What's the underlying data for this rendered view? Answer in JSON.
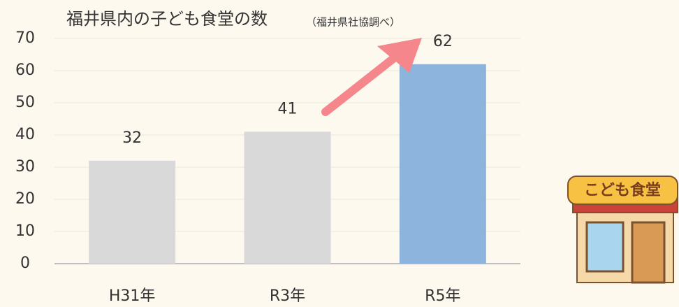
{
  "chart_data": {
    "type": "bar",
    "title": "福井県内の子ども食堂の数",
    "subtitle": "（福井県社協調べ）",
    "categories": [
      "H31年",
      "R3年",
      "R5年"
    ],
    "values": [
      32,
      41,
      62
    ],
    "colors": [
      "#d9d9d9",
      "#d9d9d9",
      "#8db4dc"
    ],
    "ylim": [
      0,
      70
    ],
    "yticks": [
      0,
      10,
      20,
      30,
      40,
      50,
      60,
      70
    ],
    "grid": true,
    "illustration_label": "こども食堂"
  }
}
